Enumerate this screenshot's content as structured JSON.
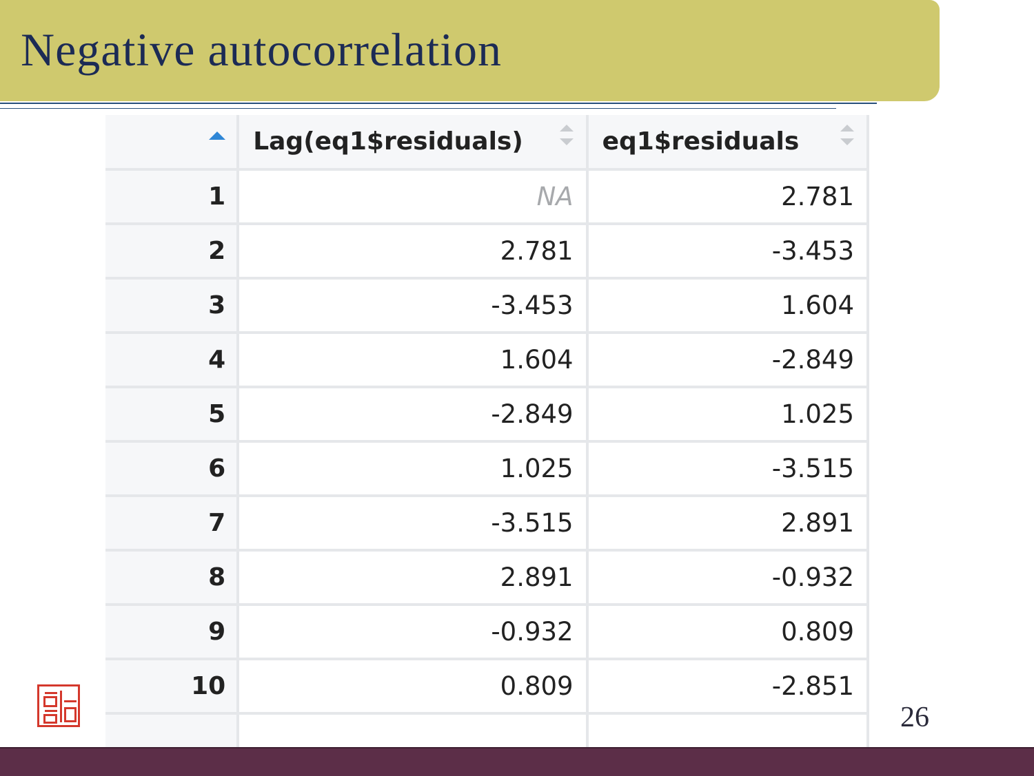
{
  "slide": {
    "title": "Negative autocorrelation",
    "page_number": "26"
  },
  "colors": {
    "title_bar": "#cfc96e",
    "title_text": "#1c2b55",
    "footer_bar": "#5c2e48",
    "sort_active": "#2e86d6",
    "seal": "#d4382c"
  },
  "data_viewer": {
    "columns": [
      {
        "key": "index",
        "label": "",
        "sort": "ascending"
      },
      {
        "key": "lag",
        "label": "Lag(eq1$residuals)",
        "sort": "none"
      },
      {
        "key": "resid",
        "label": "eq1$residuals",
        "sort": "none"
      }
    ],
    "rows": [
      {
        "index": "1",
        "lag": "NA",
        "resid": "2.781"
      },
      {
        "index": "2",
        "lag": "2.781",
        "resid": "-3.453"
      },
      {
        "index": "3",
        "lag": "-3.453",
        "resid": "1.604"
      },
      {
        "index": "4",
        "lag": "1.604",
        "resid": "-2.849"
      },
      {
        "index": "5",
        "lag": "-2.849",
        "resid": "1.025"
      },
      {
        "index": "6",
        "lag": "1.025",
        "resid": "-3.515"
      },
      {
        "index": "7",
        "lag": "-3.515",
        "resid": "2.891"
      },
      {
        "index": "8",
        "lag": "2.891",
        "resid": "-0.932"
      },
      {
        "index": "9",
        "lag": "-0.932",
        "resid": "0.809"
      },
      {
        "index": "10",
        "lag": "0.809",
        "resid": "-2.851"
      },
      {
        "index": "",
        "lag": "",
        "resid": ""
      }
    ]
  },
  "icons": {
    "sort_ascending": "sort-ascending-icon",
    "sort_none": "sort-icon",
    "seal": "seal-logo"
  }
}
